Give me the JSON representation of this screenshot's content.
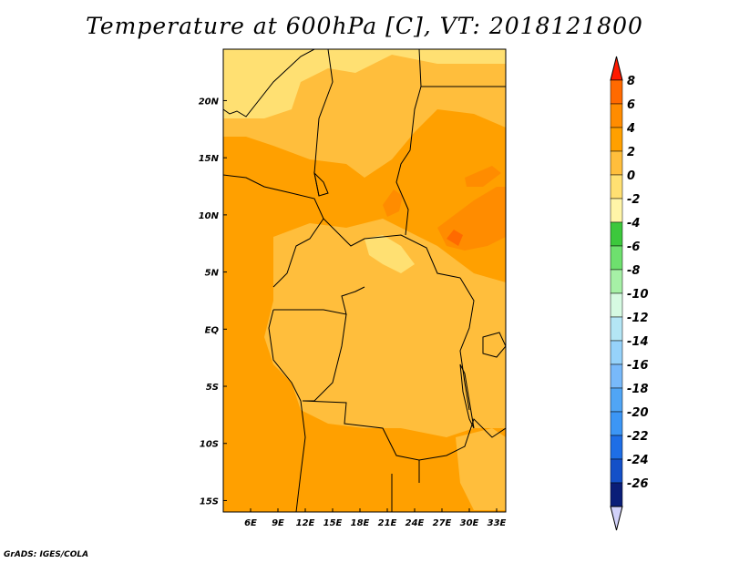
{
  "title": "Temperature at 600hPa [C], VT: 2018121800",
  "credit": "GrADS: IGES/COLA",
  "map": {
    "lon_range": [
      3,
      34
    ],
    "lat_range": [
      -16,
      24.5
    ],
    "lon_ticks": [
      {
        "value": 6,
        "label": "6E"
      },
      {
        "value": 9,
        "label": "9E"
      },
      {
        "value": 12,
        "label": "12E"
      },
      {
        "value": 15,
        "label": "15E"
      },
      {
        "value": 18,
        "label": "18E"
      },
      {
        "value": 21,
        "label": "21E"
      },
      {
        "value": 24,
        "label": "24E"
      },
      {
        "value": 27,
        "label": "27E"
      },
      {
        "value": 30,
        "label": "30E"
      },
      {
        "value": 33,
        "label": "33E"
      }
    ],
    "lat_ticks": [
      {
        "value": 20,
        "label": "20N"
      },
      {
        "value": 15,
        "label": "15N"
      },
      {
        "value": 10,
        "label": "10N"
      },
      {
        "value": 5,
        "label": "5N"
      },
      {
        "value": 0,
        "label": "EQ"
      },
      {
        "value": -5,
        "label": "5S"
      },
      {
        "value": -10,
        "label": "10S"
      },
      {
        "value": -15,
        "label": "15S"
      }
    ]
  },
  "colorbar": {
    "levels": [
      {
        "label": "8",
        "color": "#ff6a00"
      },
      {
        "label": "6",
        "color": "#ff8c00"
      },
      {
        "label": "4",
        "color": "#ffa000"
      },
      {
        "label": "2",
        "color": "#ffbe3c"
      },
      {
        "label": "0",
        "color": "#ffe072"
      },
      {
        "label": "-2",
        "color": "#fff5a8"
      },
      {
        "label": "-4",
        "color": "#3cc83c"
      },
      {
        "label": "-6",
        "color": "#6ee06e"
      },
      {
        "label": "-8",
        "color": "#a6f0a6"
      },
      {
        "label": "-10",
        "color": "#d6fae2"
      },
      {
        "label": "-12",
        "color": "#b4e6f5"
      },
      {
        "label": "-14",
        "color": "#96d2fa"
      },
      {
        "label": "-16",
        "color": "#78b9fa"
      },
      {
        "label": "-18",
        "color": "#50a5f5"
      },
      {
        "label": "-20",
        "color": "#3c96f5"
      },
      {
        "label": "-22",
        "color": "#1e6ee6"
      },
      {
        "label": "-24",
        "color": "#1450c8"
      },
      {
        "label": "-26",
        "color": "#0a1e78"
      }
    ],
    "over_color": "#ff1a00",
    "under_color": "#d2d2fa"
  }
}
